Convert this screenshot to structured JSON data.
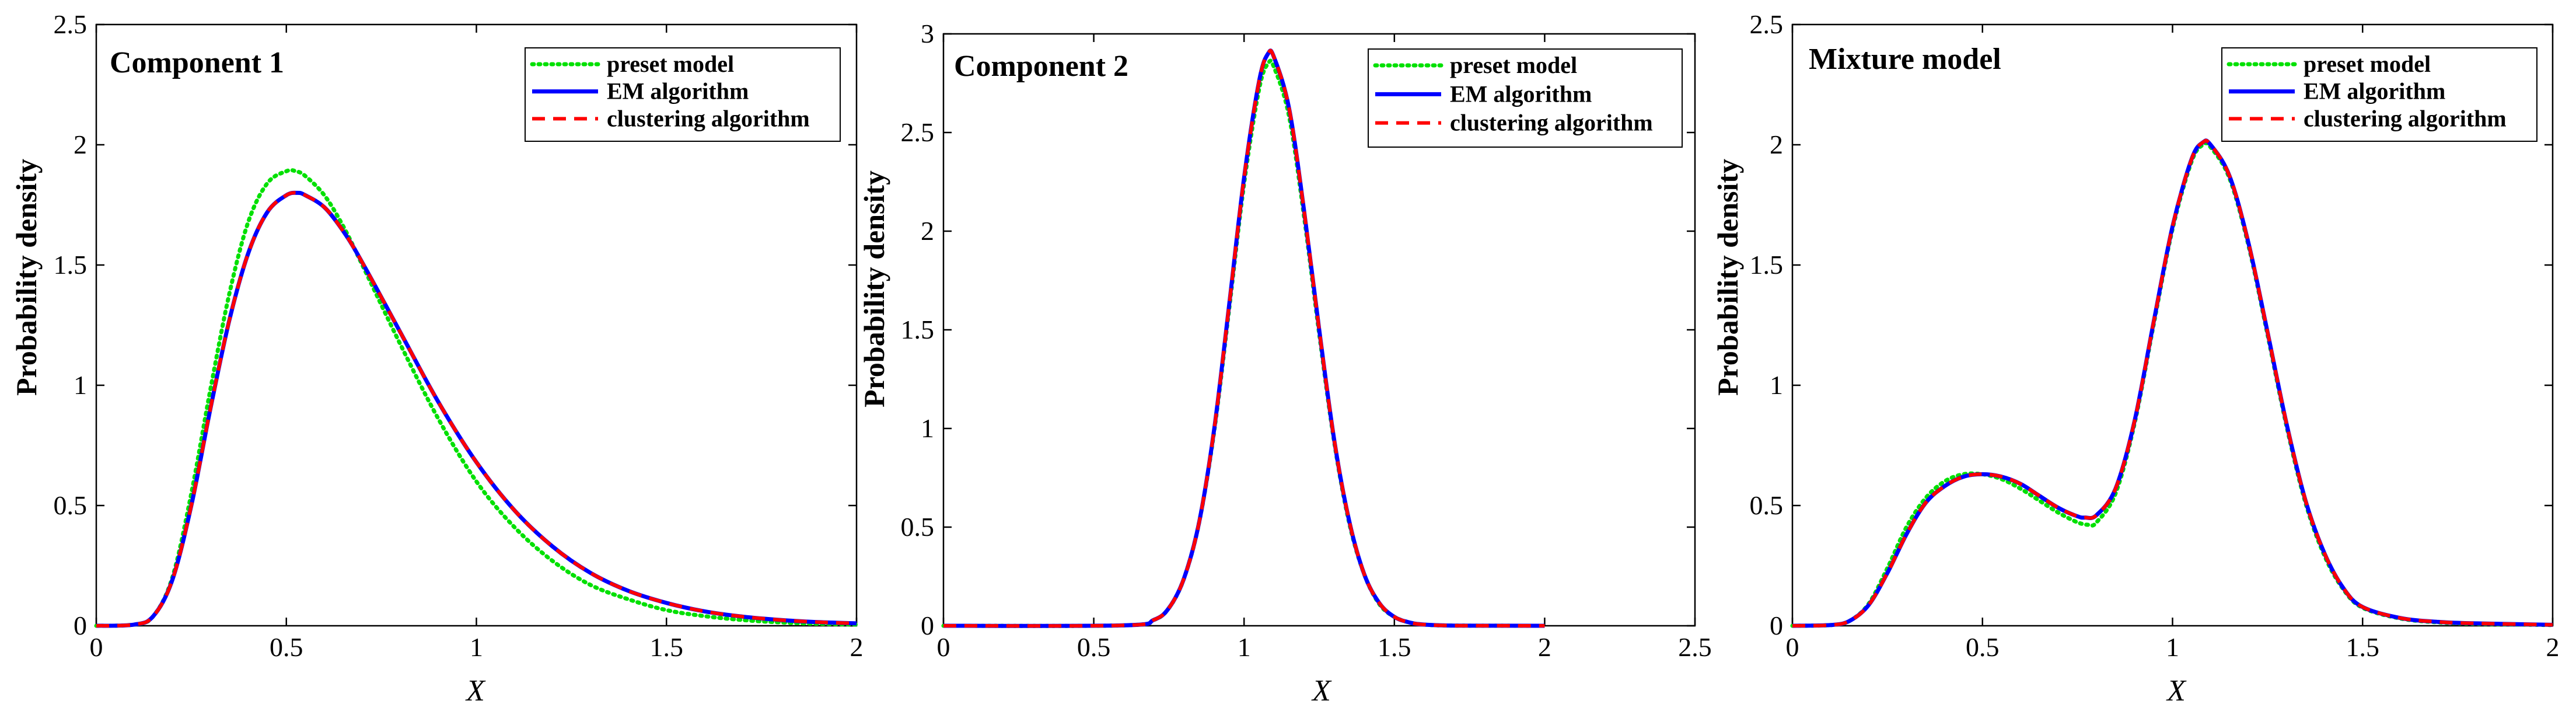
{
  "figure": {
    "panels": [
      {
        "title": "Component 1",
        "xlabel": "X",
        "ylabel": "Probability density",
        "xlim": [
          0,
          2
        ],
        "ylim": [
          0,
          2.5
        ],
        "xticks": [
          "0",
          "0.5",
          "1",
          "1.5",
          "2"
        ],
        "yticks": [
          "0",
          "0.5",
          "1",
          "1.5",
          "2",
          "2.5"
        ]
      },
      {
        "title": "Component 2",
        "xlabel": "X",
        "ylabel": "Probability density",
        "xlim": [
          0,
          2.5
        ],
        "ylim": [
          0,
          3
        ],
        "xticks": [
          "0",
          "0.5",
          "1",
          "1.5",
          "2",
          "2.5"
        ],
        "yticks": [
          "0",
          "0.5",
          "1",
          "1.5",
          "2",
          "2.5",
          "3"
        ]
      },
      {
        "title": "Mixture model",
        "xlabel": "X",
        "ylabel": "Probability density",
        "xlim": [
          0,
          2
        ],
        "ylim": [
          0,
          2.5
        ],
        "xticks": [
          "0",
          "0.5",
          "1",
          "1.5",
          "2"
        ],
        "yticks": [
          "0",
          "0.5",
          "1",
          "1.5",
          "2",
          "2.5"
        ]
      }
    ],
    "legend": [
      "preset model",
      "EM algorithm",
      "clustering algorithm"
    ]
  },
  "colors": {
    "preset": "#00e000",
    "em": "#0000ff",
    "clustering": "#ff0000",
    "axis": "#000000"
  },
  "chart_data": [
    {
      "type": "line",
      "title": "Component 1",
      "xlabel": "X",
      "ylabel": "Probability density",
      "xlim": [
        0,
        2
      ],
      "ylim": [
        0,
        2.5
      ],
      "legend_position": "top-right",
      "grid": false,
      "series": [
        {
          "name": "preset model",
          "style": "dotted",
          "x": [
            0,
            0.1,
            0.15,
            0.2,
            0.25,
            0.3,
            0.35,
            0.4,
            0.45,
            0.5,
            0.525,
            0.55,
            0.6,
            0.65,
            0.7,
            0.8,
            0.9,
            1.0,
            1.1,
            1.2,
            1.3,
            1.4,
            1.5,
            1.6,
            1.7,
            1.8,
            1.9,
            2.0
          ],
          "y": [
            0,
            0.005,
            0.04,
            0.2,
            0.55,
            0.98,
            1.38,
            1.68,
            1.84,
            1.89,
            1.89,
            1.87,
            1.79,
            1.66,
            1.5,
            1.17,
            0.86,
            0.6,
            0.41,
            0.27,
            0.17,
            0.11,
            0.065,
            0.04,
            0.024,
            0.014,
            0.008,
            0.005
          ]
        },
        {
          "name": "EM algorithm",
          "style": "solid",
          "x": [
            0,
            0.1,
            0.15,
            0.2,
            0.25,
            0.3,
            0.35,
            0.4,
            0.45,
            0.5,
            0.53,
            0.55,
            0.6,
            0.65,
            0.7,
            0.8,
            0.9,
            1.0,
            1.1,
            1.2,
            1.3,
            1.4,
            1.5,
            1.6,
            1.7,
            1.8,
            1.9,
            2.0
          ],
          "y": [
            0,
            0.005,
            0.04,
            0.19,
            0.5,
            0.9,
            1.27,
            1.55,
            1.72,
            1.79,
            1.8,
            1.79,
            1.74,
            1.64,
            1.51,
            1.22,
            0.93,
            0.68,
            0.48,
            0.33,
            0.22,
            0.145,
            0.095,
            0.06,
            0.038,
            0.024,
            0.015,
            0.01
          ]
        },
        {
          "name": "clustering algorithm",
          "style": "dashed",
          "x": [
            0,
            0.1,
            0.15,
            0.2,
            0.25,
            0.3,
            0.35,
            0.4,
            0.45,
            0.5,
            0.53,
            0.55,
            0.6,
            0.65,
            0.7,
            0.8,
            0.9,
            1.0,
            1.1,
            1.2,
            1.3,
            1.4,
            1.5,
            1.6,
            1.7,
            1.8,
            1.9,
            2.0
          ],
          "y": [
            0,
            0.005,
            0.04,
            0.19,
            0.5,
            0.9,
            1.27,
            1.55,
            1.72,
            1.79,
            1.8,
            1.79,
            1.74,
            1.64,
            1.51,
            1.22,
            0.93,
            0.68,
            0.48,
            0.33,
            0.22,
            0.145,
            0.095,
            0.06,
            0.038,
            0.024,
            0.015,
            0.01
          ]
        }
      ]
    },
    {
      "type": "line",
      "title": "Component 2",
      "xlabel": "X",
      "ylabel": "Probability density",
      "xlim": [
        0,
        2.5
      ],
      "ylim": [
        0,
        3
      ],
      "legend_position": "top-right",
      "grid": false,
      "series": [
        {
          "name": "preset model",
          "style": "dotted",
          "x": [
            0,
            0.6,
            0.7,
            0.75,
            0.8,
            0.85,
            0.9,
            0.95,
            1.0,
            1.05,
            1.08,
            1.1,
            1.15,
            1.2,
            1.25,
            1.3,
            1.35,
            1.4,
            1.45,
            1.5,
            1.55,
            1.6,
            1.7,
            2.0
          ],
          "y": [
            0,
            0.002,
            0.03,
            0.09,
            0.24,
            0.52,
            0.98,
            1.6,
            2.24,
            2.72,
            2.85,
            2.83,
            2.58,
            2.07,
            1.48,
            0.93,
            0.52,
            0.26,
            0.11,
            0.045,
            0.017,
            0.006,
            0.001,
            0
          ]
        },
        {
          "name": "EM algorithm",
          "style": "solid",
          "x": [
            0,
            0.6,
            0.7,
            0.75,
            0.8,
            0.85,
            0.9,
            0.95,
            1.0,
            1.05,
            1.08,
            1.1,
            1.15,
            1.2,
            1.25,
            1.3,
            1.35,
            1.4,
            1.45,
            1.5,
            1.55,
            1.6,
            1.7,
            2.0
          ],
          "y": [
            0,
            0.002,
            0.03,
            0.09,
            0.24,
            0.52,
            0.99,
            1.62,
            2.27,
            2.76,
            2.9,
            2.88,
            2.62,
            2.1,
            1.5,
            0.94,
            0.53,
            0.26,
            0.115,
            0.045,
            0.017,
            0.006,
            0.001,
            0
          ]
        },
        {
          "name": "clustering algorithm",
          "style": "dashed",
          "x": [
            0,
            0.6,
            0.7,
            0.75,
            0.8,
            0.85,
            0.9,
            0.95,
            1.0,
            1.05,
            1.08,
            1.1,
            1.15,
            1.2,
            1.25,
            1.3,
            1.35,
            1.4,
            1.45,
            1.5,
            1.55,
            1.6,
            1.7,
            2.0
          ],
          "y": [
            0,
            0.002,
            0.03,
            0.09,
            0.24,
            0.52,
            0.99,
            1.62,
            2.27,
            2.76,
            2.9,
            2.88,
            2.62,
            2.1,
            1.5,
            0.94,
            0.53,
            0.26,
            0.115,
            0.045,
            0.017,
            0.006,
            0.001,
            0
          ]
        }
      ]
    },
    {
      "type": "line",
      "title": "Mixture model",
      "xlabel": "X",
      "ylabel": "Probability density",
      "xlim": [
        0,
        2
      ],
      "ylim": [
        0,
        2.5
      ],
      "legend_position": "top-right",
      "grid": false,
      "series": [
        {
          "name": "preset model",
          "style": "dotted",
          "x": [
            0,
            0.1,
            0.15,
            0.2,
            0.25,
            0.3,
            0.35,
            0.4,
            0.45,
            0.5,
            0.55,
            0.6,
            0.65,
            0.7,
            0.75,
            0.78,
            0.8,
            0.85,
            0.9,
            0.95,
            1.0,
            1.05,
            1.08,
            1.1,
            1.15,
            1.2,
            1.25,
            1.3,
            1.35,
            1.4,
            1.45,
            1.5,
            1.6,
            1.7,
            1.8,
            2.0
          ],
          "y": [
            0,
            0.003,
            0.02,
            0.09,
            0.24,
            0.41,
            0.53,
            0.6,
            0.63,
            0.63,
            0.61,
            0.57,
            0.52,
            0.47,
            0.43,
            0.42,
            0.43,
            0.55,
            0.84,
            1.25,
            1.65,
            1.93,
            2.0,
            1.99,
            1.86,
            1.58,
            1.21,
            0.83,
            0.51,
            0.29,
            0.15,
            0.075,
            0.03,
            0.014,
            0.008,
            0.003
          ]
        },
        {
          "name": "EM algorithm",
          "style": "solid",
          "x": [
            0,
            0.1,
            0.15,
            0.2,
            0.25,
            0.3,
            0.35,
            0.4,
            0.45,
            0.5,
            0.55,
            0.6,
            0.65,
            0.7,
            0.75,
            0.77,
            0.8,
            0.85,
            0.9,
            0.95,
            1.0,
            1.05,
            1.08,
            1.1,
            1.15,
            1.2,
            1.25,
            1.3,
            1.35,
            1.4,
            1.45,
            1.5,
            1.6,
            1.7,
            1.8,
            2.0
          ],
          "y": [
            0,
            0.003,
            0.02,
            0.085,
            0.22,
            0.38,
            0.51,
            0.58,
            0.62,
            0.63,
            0.62,
            0.59,
            0.54,
            0.49,
            0.455,
            0.45,
            0.46,
            0.57,
            0.85,
            1.26,
            1.66,
            1.94,
            2.01,
            2.0,
            1.87,
            1.59,
            1.22,
            0.84,
            0.52,
            0.3,
            0.155,
            0.078,
            0.032,
            0.016,
            0.01,
            0.004
          ]
        },
        {
          "name": "clustering algorithm",
          "style": "dashed",
          "x": [
            0,
            0.1,
            0.15,
            0.2,
            0.25,
            0.3,
            0.35,
            0.4,
            0.45,
            0.5,
            0.55,
            0.6,
            0.65,
            0.7,
            0.75,
            0.77,
            0.8,
            0.85,
            0.9,
            0.95,
            1.0,
            1.05,
            1.08,
            1.1,
            1.15,
            1.2,
            1.25,
            1.3,
            1.35,
            1.4,
            1.45,
            1.5,
            1.6,
            1.7,
            1.8,
            2.0
          ],
          "y": [
            0,
            0.003,
            0.02,
            0.085,
            0.22,
            0.38,
            0.51,
            0.58,
            0.62,
            0.63,
            0.62,
            0.59,
            0.54,
            0.49,
            0.455,
            0.45,
            0.46,
            0.57,
            0.85,
            1.26,
            1.66,
            1.94,
            2.01,
            2.0,
            1.87,
            1.59,
            1.22,
            0.84,
            0.52,
            0.3,
            0.155,
            0.078,
            0.032,
            0.016,
            0.01,
            0.004
          ]
        }
      ]
    }
  ]
}
